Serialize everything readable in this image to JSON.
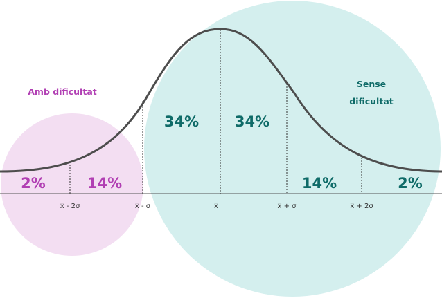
{
  "colors": {
    "left_circle": "#f3def2",
    "right_circle": "#d4efee",
    "left_text": "#b13fb3",
    "right_text": "#0f6b68",
    "curve": "#4d4d4d",
    "axis": "#555555"
  },
  "groups": {
    "left_title": "Amb dificultat",
    "right_title_line1": "Sense",
    "right_title_line2": "dificultat"
  },
  "segments": [
    {
      "label": "2%",
      "side": "left"
    },
    {
      "label": "14%",
      "side": "left"
    },
    {
      "label": "34%",
      "side": "right"
    },
    {
      "label": "34%",
      "side": "right"
    },
    {
      "label": "14%",
      "side": "right"
    },
    {
      "label": "2%",
      "side": "right"
    }
  ],
  "ticks": [
    "x̅ - 2σ",
    "x̅ - σ",
    "x̅",
    "x̅ + σ",
    "x̅ + 2σ"
  ]
}
